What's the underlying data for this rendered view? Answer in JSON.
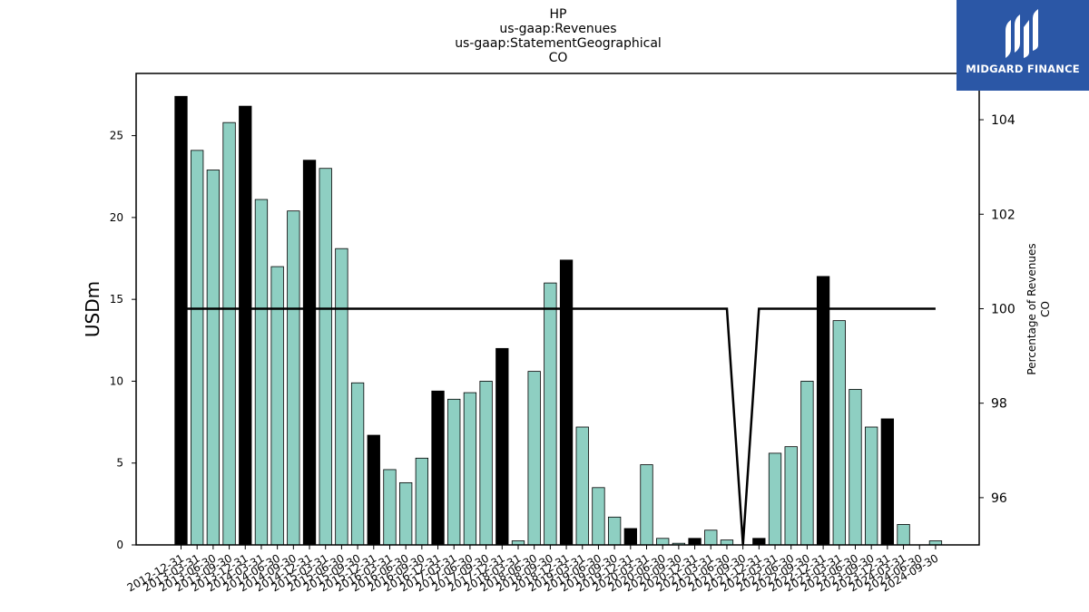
{
  "chart_data": {
    "type": "bar",
    "title_lines": [
      "HP",
      "us-gaap:Revenues",
      "us-gaap:StatementGeographical",
      "CO"
    ],
    "ylabel": "USDm",
    "y2label_lines": [
      "Percentage of Revenues",
      "CO"
    ],
    "ylim": [
      0,
      28.8
    ],
    "y2lim": [
      95.0,
      104.98
    ],
    "yticks": [
      0,
      5,
      10,
      15,
      20,
      25
    ],
    "y2ticks": [
      96,
      98,
      100,
      102,
      104
    ],
    "grid": false,
    "categories": [
      "2012-12-31",
      "2013-03-31",
      "2013-06-30",
      "2013-09-30",
      "2013-12-31",
      "2014-03-31",
      "2014-06-30",
      "2014-09-30",
      "2014-12-31",
      "2015-03-31",
      "2015-06-30",
      "2015-09-30",
      "2015-12-31",
      "2016-03-31",
      "2016-06-30",
      "2016-09-30",
      "2016-12-31",
      "2017-03-31",
      "2017-06-30",
      "2017-09-30",
      "2017-12-31",
      "2018-03-31",
      "2018-06-30",
      "2018-09-30",
      "2018-12-31",
      "2019-03-31",
      "2019-06-30",
      "2019-09-30",
      "2019-12-31",
      "2020-03-31",
      "2020-06-30",
      "2020-09-30",
      "2020-12-31",
      "2021-03-31",
      "2021-06-30",
      "2021-09-30",
      "2021-12-31",
      "2022-03-31",
      "2022-06-30",
      "2022-09-30",
      "2022-12-31",
      "2023-03-31",
      "2023-06-30",
      "2023-09-30",
      "2023-12-31",
      "2024-03-31",
      "2024-06-30",
      "2024-09-30"
    ],
    "values": [
      27.4,
      24.1,
      22.9,
      25.8,
      26.8,
      21.1,
      17.0,
      20.4,
      23.5,
      23.0,
      18.1,
      9.9,
      6.7,
      4.6,
      3.8,
      5.3,
      9.4,
      8.9,
      9.3,
      10.0,
      12.0,
      0.25,
      10.6,
      16.0,
      17.4,
      7.2,
      3.5,
      1.7,
      1.0,
      4.9,
      0.4,
      0.1,
      0.4,
      0.9,
      0.3,
      0.0,
      0.4,
      5.6,
      6.0,
      10.0,
      16.4,
      13.7,
      9.5,
      7.2,
      7.7,
      1.25,
      0.0,
      0.25
    ],
    "fiscal_year_end": [
      true,
      false,
      false,
      false,
      true,
      false,
      false,
      false,
      true,
      false,
      false,
      false,
      true,
      false,
      false,
      false,
      true,
      false,
      false,
      false,
      true,
      false,
      false,
      false,
      true,
      false,
      false,
      false,
      true,
      false,
      false,
      false,
      true,
      false,
      false,
      false,
      true,
      false,
      false,
      false,
      true,
      false,
      false,
      false,
      true,
      false,
      false,
      false
    ],
    "percentage_series": [
      100,
      100,
      100,
      100,
      100,
      100,
      100,
      100,
      100,
      100,
      100,
      100,
      100,
      100,
      100,
      100,
      100,
      100,
      100,
      100,
      100,
      100,
      100,
      100,
      100,
      100,
      100,
      100,
      100,
      100,
      100,
      100,
      100,
      100,
      100,
      null,
      100,
      100,
      100,
      100,
      100,
      100,
      100,
      100,
      100,
      100,
      100,
      100
    ],
    "colors": {
      "quarter_bar": "#8ecfc2",
      "year_bar": "#000000",
      "bar_edge": "#000000",
      "line": "#000000"
    }
  },
  "logo": {
    "text": "MIDGARD FINANCE",
    "background": "#2b57a6"
  }
}
